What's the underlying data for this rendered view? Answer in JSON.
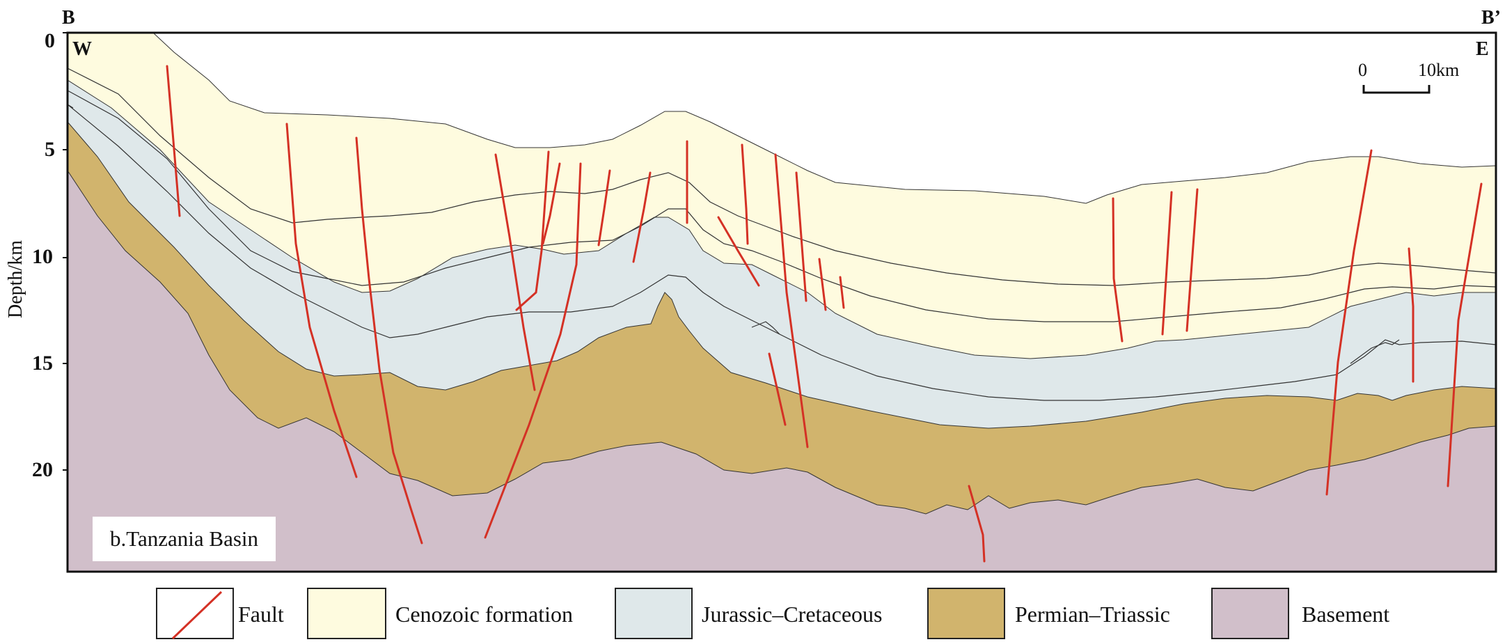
{
  "section": {
    "left_end": "B",
    "right_end": "B’",
    "west": "W",
    "east": "E",
    "panel_label": "b.Tanzania Basin"
  },
  "axis": {
    "title": "Depth/km",
    "ticks": [
      "0",
      "5",
      "10",
      "15",
      "20"
    ]
  },
  "scale_bar": {
    "start": "0",
    "end": "10km"
  },
  "legend": {
    "fault": "Fault",
    "cenozoic": "Cenozoic formation",
    "jurassic": "Jurassic–Cretaceous",
    "permian": "Permian–Triassic",
    "basement": "Basement"
  },
  "colors": {
    "cenozoic": "#fefbdf",
    "jurassic": "#dfe8ea",
    "permian": "#d1b46d",
    "basement": "#d1bfca",
    "fault": "#d43125",
    "frame": "#111111"
  }
}
